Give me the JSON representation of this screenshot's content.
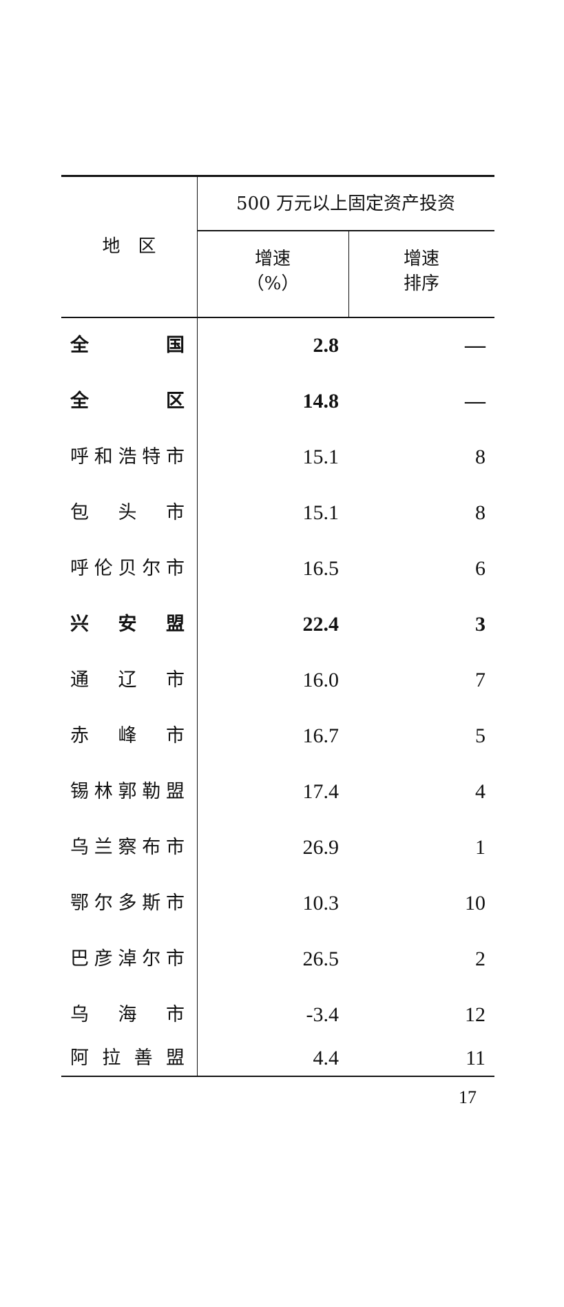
{
  "header": {
    "region_label": "地　区",
    "group_title": "500 万元以上固定资产投资",
    "col_growth": [
      "增速",
      "（%）"
    ],
    "col_rank": [
      "增速",
      "排序"
    ]
  },
  "rows": [
    {
      "region": "全国",
      "growth": "2.8",
      "rank": "—",
      "bold": true
    },
    {
      "region": "全区",
      "growth": "14.8",
      "rank": "—",
      "bold": true
    },
    {
      "region": "呼和浩特市",
      "growth": "15.1",
      "rank": "8",
      "bold": false
    },
    {
      "region": "包头市",
      "growth": "15.1",
      "rank": "8",
      "bold": false
    },
    {
      "region": "呼伦贝尔市",
      "growth": "16.5",
      "rank": "6",
      "bold": false
    },
    {
      "region": "兴安盟",
      "growth": "22.4",
      "rank": "3",
      "bold": true
    },
    {
      "region": "通辽市",
      "growth": "16.0",
      "rank": "7",
      "bold": false
    },
    {
      "region": "赤峰市",
      "growth": "16.7",
      "rank": "5",
      "bold": false
    },
    {
      "region": "锡林郭勒盟",
      "growth": "17.4",
      "rank": "4",
      "bold": false
    },
    {
      "region": "乌兰察布市",
      "growth": "26.9",
      "rank": "1",
      "bold": false
    },
    {
      "region": "鄂尔多斯市",
      "growth": "10.3",
      "rank": "10",
      "bold": false
    },
    {
      "region": "巴彦淖尔市",
      "growth": "26.5",
      "rank": "2",
      "bold": false
    },
    {
      "region": "乌海市",
      "growth": "-3.4",
      "rank": "12",
      "bold": false
    },
    {
      "region": "阿拉善盟",
      "growth": "4.4",
      "rank": "11",
      "bold": false
    }
  ],
  "page_number": "17"
}
